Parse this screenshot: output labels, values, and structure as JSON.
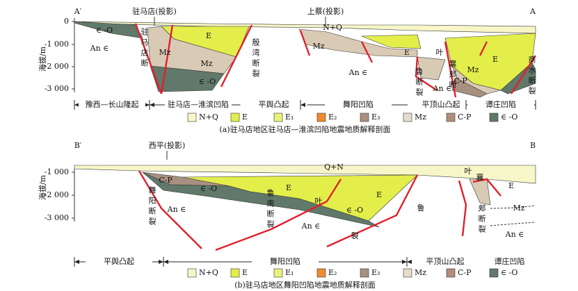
{
  "panels": [
    {
      "left_end": "A′",
      "right_end": "A",
      "y_axis_label": "海拔/m",
      "yticks": [
        "0",
        "-1 000",
        "-2 000",
        "-3 000"
      ],
      "projections": [
        "驻马店(投影)",
        "上蔡(投影)"
      ],
      "labels": [
        "∈ -O",
        "An ∈",
        "驻马店断",
        "Mz",
        "E",
        "Mz",
        "∈ -O",
        "殷湾断裂",
        "N+Q",
        "Mz",
        "An ∈",
        "E",
        "叶",
        "襄郏断",
        "鲁断裂",
        "An ∈",
        "C-P",
        "Mz",
        "E",
        "商水断裂"
      ],
      "regions": [
        "豫西—长山隆起",
        "驻马店—淮滨凹陷",
        "平舆凸起",
        "舞阳凹陷",
        "平顶山凸起",
        "谭庄凹陷"
      ],
      "caption": "(a)驻马店地区驻马店—淮滨凹陷地震地质解释剖面"
    },
    {
      "left_end": "B′",
      "right_end": "B",
      "y_axis_label": "海拔/m",
      "yticks": [
        "-1 000",
        "-2 000",
        "-3 000"
      ],
      "projections": [
        "西平(投影)"
      ],
      "labels": [
        "Q+N",
        "C-P",
        "∈ -O",
        "E",
        "E",
        "An ∈",
        "舞阳断裂",
        "鲁南断裂",
        "叶",
        "∈ -O",
        "An ∈",
        "鲁",
        "裂",
        "叶",
        "襄",
        "郏断裂",
        "E",
        "Mz",
        "An ∈"
      ],
      "regions": [
        "平舆凸起",
        "舞阳凹陷",
        "平顶山凸起",
        "谭庄凹陷"
      ],
      "caption": "(b)驻马店地区舞阳凹陷地震地质解释剖面"
    }
  ],
  "legend": [
    "N+Q",
    "E",
    "E₁",
    "E₂",
    "E₃",
    "Mz",
    "C-P",
    "∈ -O"
  ]
}
